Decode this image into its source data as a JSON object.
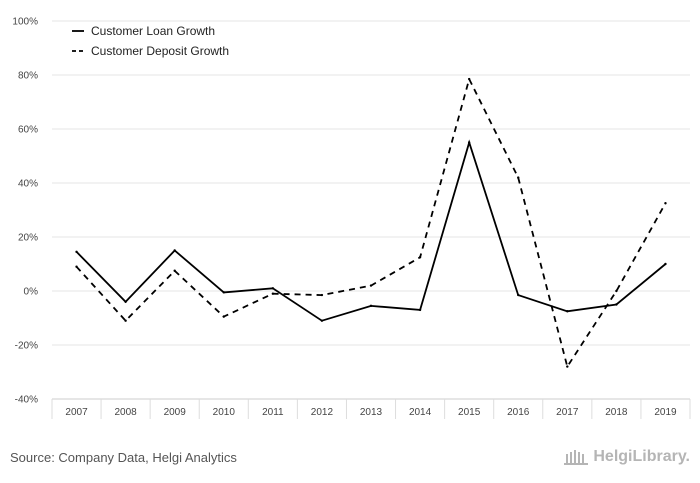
{
  "chart_data": {
    "type": "line",
    "x": [
      "2007",
      "2008",
      "2009",
      "2010",
      "2011",
      "2012",
      "2013",
      "2014",
      "2015",
      "2016",
      "2017",
      "2018",
      "2019"
    ],
    "series": [
      {
        "name": "Customer Loan Growth",
        "style": "solid",
        "values": [
          14.5,
          -4.0,
          15.0,
          -0.5,
          1.0,
          -11.0,
          -5.5,
          -7.0,
          55.0,
          -1.5,
          -7.5,
          -5.0,
          10.0
        ]
      },
      {
        "name": "Customer Deposit Growth",
        "style": "dashed",
        "values": [
          9.0,
          -11.0,
          7.5,
          -9.5,
          -1.0,
          -1.5,
          2.0,
          12.5,
          78.5,
          42.0,
          -28.0,
          0.0,
          32.5
        ]
      }
    ],
    "ylim": [
      -40,
      100
    ],
    "yticks": [
      -40,
      -20,
      0,
      20,
      40,
      60,
      80,
      100
    ],
    "ytick_labels": [
      "-40%",
      "-20%",
      "0%",
      "20%",
      "40%",
      "60%",
      "80%",
      "100%"
    ],
    "legend_position": "top-left",
    "grid": true,
    "line_color": "#000000",
    "grid_color": "#e6e6e6"
  },
  "footer": {
    "source": "Source: Company Data, Helgi Analytics",
    "logo_text": "HelgiLibrary."
  }
}
